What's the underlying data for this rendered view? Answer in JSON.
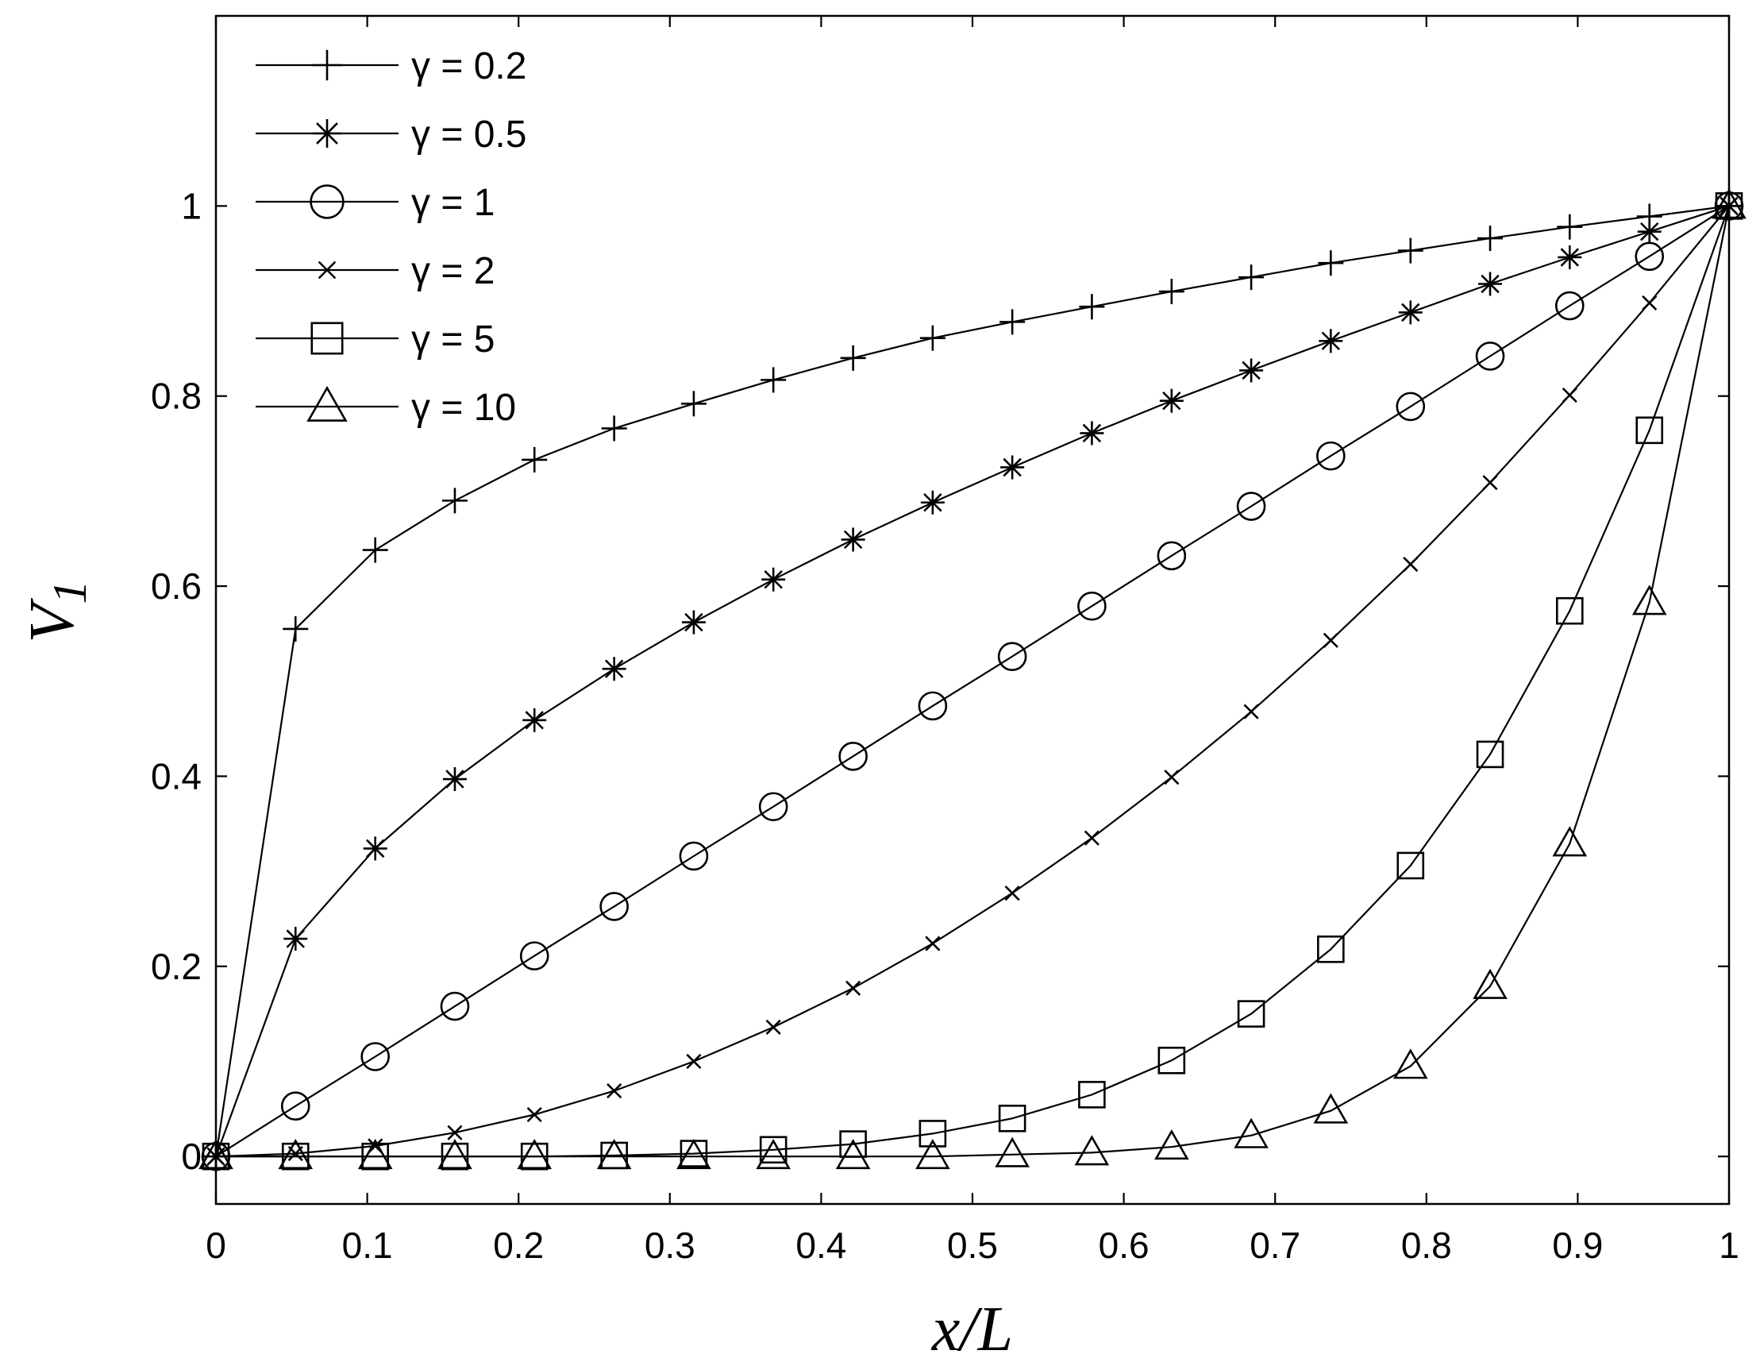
{
  "chart_data": {
    "type": "line",
    "xlabel": "x/L",
    "ylabel": "V",
    "ylabel_sub": "1",
    "xlim": [
      0,
      1
    ],
    "ylim": [
      -0.05,
      1.2
    ],
    "x_ticks": [
      0,
      0.1,
      0.2,
      0.3,
      0.4,
      0.5,
      0.6,
      0.7,
      0.8,
      0.9,
      1
    ],
    "x_tick_labels": [
      "0",
      "0.1",
      "0.2",
      "0.3",
      "0.4",
      "0.5",
      "0.6",
      "0.7",
      "0.8",
      "0.9",
      "1"
    ],
    "y_ticks": [
      0,
      0.2,
      0.4,
      0.6,
      0.8,
      1
    ],
    "y_tick_labels": [
      "0",
      "0.2",
      "0.4",
      "0.6",
      "0.8",
      "1"
    ],
    "grid": false,
    "legend_position": "top-left",
    "x": [
      0,
      0.0526,
      0.1053,
      0.1579,
      0.2105,
      0.2632,
      0.3158,
      0.3684,
      0.4211,
      0.4737,
      0.5263,
      0.5789,
      0.6316,
      0.6842,
      0.7368,
      0.7895,
      0.8421,
      0.8947,
      0.9474,
      1
    ],
    "series": [
      {
        "name": "γ = 0.2",
        "marker": "plus",
        "values": [
          0,
          0.555,
          0.638,
          0.69,
          0.733,
          0.766,
          0.792,
          0.817,
          0.84,
          0.861,
          0.878,
          0.894,
          0.91,
          0.925,
          0.94,
          0.953,
          0.966,
          0.978,
          0.989,
          1.0
        ]
      },
      {
        "name": "γ = 0.5",
        "marker": "asterisk",
        "values": [
          0,
          0.229,
          0.324,
          0.397,
          0.459,
          0.513,
          0.562,
          0.607,
          0.649,
          0.688,
          0.725,
          0.761,
          0.795,
          0.827,
          0.858,
          0.888,
          0.918,
          0.946,
          0.973,
          1.0
        ]
      },
      {
        "name": "γ = 1",
        "marker": "circle",
        "values": [
          0,
          0.053,
          0.105,
          0.158,
          0.211,
          0.263,
          0.316,
          0.368,
          0.421,
          0.474,
          0.526,
          0.579,
          0.632,
          0.684,
          0.737,
          0.789,
          0.842,
          0.895,
          0.947,
          1.0
        ]
      },
      {
        "name": "γ = 2",
        "marker": "cross",
        "values": [
          0,
          0.003,
          0.011,
          0.025,
          0.044,
          0.069,
          0.1,
          0.136,
          0.177,
          0.224,
          0.277,
          0.335,
          0.399,
          0.468,
          0.543,
          0.623,
          0.709,
          0.801,
          0.898,
          1.0
        ]
      },
      {
        "name": "γ = 5",
        "marker": "square",
        "values": [
          0,
          0.0,
          0.0,
          0.0,
          0.0,
          0.001,
          0.003,
          0.007,
          0.013,
          0.024,
          0.04,
          0.065,
          0.101,
          0.15,
          0.218,
          0.306,
          0.423,
          0.574,
          0.764,
          1.0
        ]
      },
      {
        "name": "γ = 10",
        "marker": "triangle",
        "values": [
          0,
          0.0,
          0.0,
          0.0,
          0.0,
          0.0,
          0.0,
          0.0,
          0.0,
          0.0,
          0.002,
          0.004,
          0.01,
          0.022,
          0.048,
          0.095,
          0.179,
          0.329,
          0.583,
          1.0
        ]
      }
    ]
  }
}
